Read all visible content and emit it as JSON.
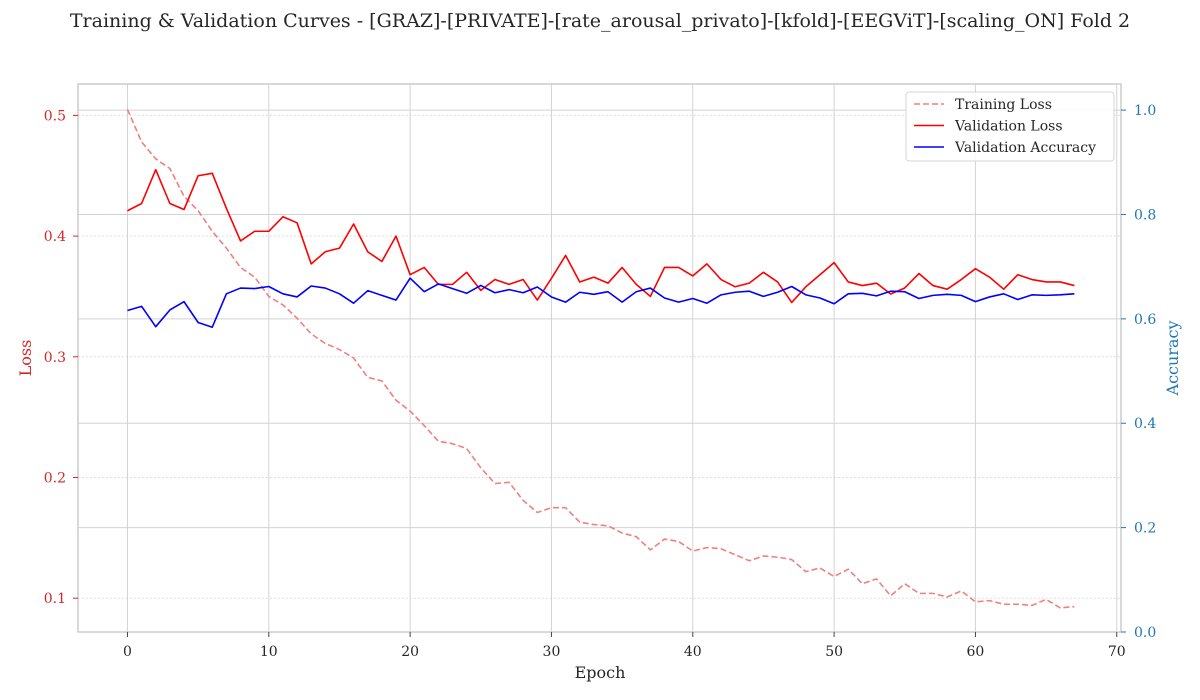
{
  "chart_data": {
    "type": "line",
    "title": "Training & Validation Curves - [GRAZ]-[PRIVATE]-[rate_arousal_privato]-[kfold]-[EEGViT]-[scaling_ON] Fold 2",
    "xlabel": "Epoch",
    "ylabel_left": "Loss",
    "ylabel_right": "Accuracy",
    "xlim": [
      -3.5,
      70.3
    ],
    "ylim_left": [
      0.072,
      0.526
    ],
    "ylim_right": [
      0.0,
      1.05
    ],
    "xticks": [
      0,
      10,
      20,
      30,
      40,
      50,
      60,
      70
    ],
    "yticks_left": [
      0.1,
      0.2,
      0.3,
      0.4,
      0.5
    ],
    "yticks_right": [
      0.0,
      0.2,
      0.4,
      0.6,
      0.8,
      1.0
    ],
    "grid": true,
    "legend_position": "top-right",
    "colors": {
      "training_loss": "#f08080",
      "validation_loss": "#ff0000",
      "validation_accuracy": "#0000ff",
      "left_axis": "#d62728",
      "right_axis": "#1f77b4",
      "grid": "#d3d3d3",
      "axes_frame": "#cccccc"
    },
    "series": [
      {
        "name": "Training Loss",
        "axis": "left",
        "style": "dashed",
        "values": [
          0.505,
          0.478,
          0.464,
          0.456,
          0.433,
          0.421,
          0.404,
          0.39,
          0.374,
          0.366,
          0.35,
          0.343,
          0.332,
          0.319,
          0.311,
          0.306,
          0.299,
          0.283,
          0.28,
          0.264,
          0.255,
          0.243,
          0.23,
          0.228,
          0.224,
          0.208,
          0.195,
          0.196,
          0.181,
          0.171,
          0.175,
          0.175,
          0.163,
          0.161,
          0.16,
          0.154,
          0.151,
          0.14,
          0.149,
          0.147,
          0.139,
          0.142,
          0.141,
          0.136,
          0.131,
          0.135,
          0.134,
          0.132,
          0.122,
          0.125,
          0.118,
          0.124,
          0.112,
          0.116,
          0.102,
          0.112,
          0.104,
          0.104,
          0.101,
          0.106,
          0.097,
          0.098,
          0.095,
          0.095,
          0.094,
          0.099,
          0.092,
          0.093
        ]
      },
      {
        "name": "Validation Loss",
        "axis": "left",
        "style": "solid",
        "values": [
          0.421,
          0.427,
          0.455,
          0.427,
          0.422,
          0.45,
          0.452,
          0.423,
          0.396,
          0.404,
          0.404,
          0.416,
          0.411,
          0.377,
          0.387,
          0.39,
          0.41,
          0.387,
          0.379,
          0.4,
          0.368,
          0.374,
          0.36,
          0.36,
          0.37,
          0.355,
          0.364,
          0.36,
          0.364,
          0.347,
          0.365,
          0.384,
          0.362,
          0.366,
          0.361,
          0.374,
          0.36,
          0.35,
          0.374,
          0.374,
          0.367,
          0.377,
          0.364,
          0.358,
          0.361,
          0.37,
          0.362,
          0.345,
          0.358,
          0.368,
          0.378,
          0.362,
          0.359,
          0.361,
          0.352,
          0.357,
          0.369,
          0.359,
          0.356,
          0.364,
          0.373,
          0.366,
          0.356,
          0.368,
          0.364,
          0.362,
          0.362,
          0.359
        ]
      },
      {
        "name": "Validation Accuracy",
        "axis": "right",
        "style": "solid",
        "values": [
          0.616,
          0.624,
          0.585,
          0.617,
          0.633,
          0.593,
          0.584,
          0.648,
          0.659,
          0.658,
          0.662,
          0.648,
          0.642,
          0.663,
          0.659,
          0.648,
          0.63,
          0.654,
          0.645,
          0.636,
          0.678,
          0.652,
          0.667,
          0.658,
          0.649,
          0.664,
          0.65,
          0.656,
          0.65,
          0.661,
          0.642,
          0.632,
          0.651,
          0.647,
          0.652,
          0.632,
          0.652,
          0.659,
          0.64,
          0.632,
          0.639,
          0.63,
          0.646,
          0.651,
          0.653,
          0.643,
          0.651,
          0.662,
          0.646,
          0.64,
          0.629,
          0.648,
          0.649,
          0.644,
          0.653,
          0.652,
          0.639,
          0.645,
          0.647,
          0.645,
          0.633,
          0.642,
          0.648,
          0.637,
          0.646,
          0.645,
          0.646,
          0.648
        ]
      }
    ]
  }
}
